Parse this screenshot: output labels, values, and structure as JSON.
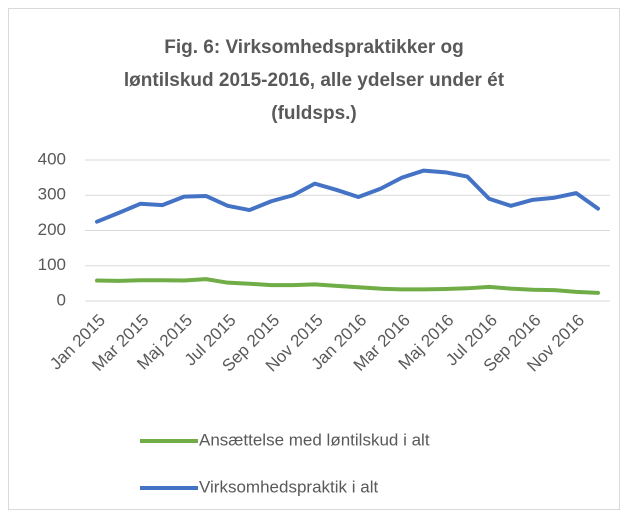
{
  "chart_data": {
    "type": "line",
    "title": [
      "Fig. 6: Virksomhedspraktikker og",
      "løntilskud 2015-2016, alle ydelser under ét",
      "(fuldsps.)"
    ],
    "categories": [
      "Jan 2015",
      null,
      "Mar 2015",
      null,
      "Maj 2015",
      null,
      "Jul 2015",
      null,
      "Sep 2015",
      null,
      "Nov 2015",
      null,
      "Jan 2016",
      null,
      "Mar 2016",
      null,
      "Maj 2016",
      null,
      "Jul 2016",
      null,
      "Sep 2016",
      null,
      "Nov 2016",
      null
    ],
    "series": [
      {
        "name": "Ansættelse med løntilskud i alt",
        "color": "#70ad47",
        "values": [
          58,
          57,
          59,
          59,
          58,
          62,
          52,
          49,
          45,
          45,
          47,
          43,
          39,
          35,
          33,
          33,
          34,
          36,
          40,
          35,
          32,
          31,
          26,
          23
        ]
      },
      {
        "name": "Virksomhedspraktik i alt",
        "color": "#4472c4",
        "values": [
          225,
          250,
          276,
          272,
          296,
          298,
          270,
          258,
          283,
          300,
          333,
          315,
          295,
          318,
          350,
          370,
          365,
          353,
          290,
          270,
          287,
          293,
          306,
          262
        ]
      }
    ],
    "ylim": [
      0,
      400
    ],
    "yticks": [
      0,
      100,
      200,
      300,
      400
    ],
    "grid": true
  }
}
